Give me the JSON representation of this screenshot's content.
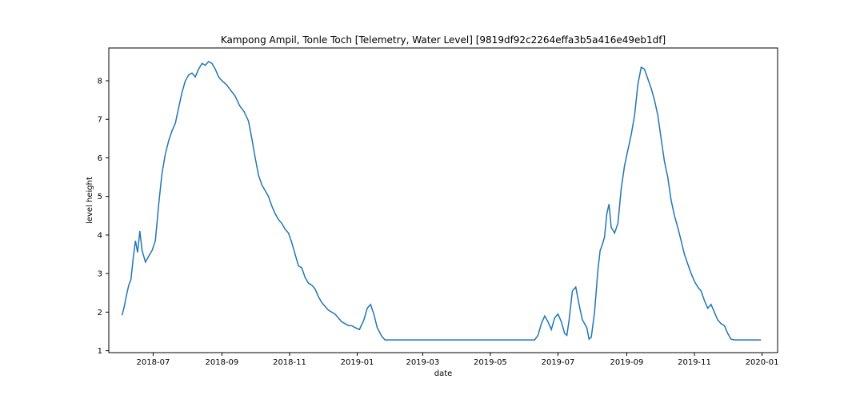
{
  "chart_data": {
    "type": "line",
    "title": "Kampong Ampil, Tonle Toch [Telemetry, Water Level] [9819df92c2264effa3b5a416e49eb1df]",
    "xlabel": "date",
    "ylabel": "level height",
    "x_tick_labels": [
      "2018-07",
      "2018-09",
      "2018-11",
      "2019-01",
      "2019-03",
      "2019-05",
      "2019-07",
      "2019-09",
      "2019-11",
      "2020-01"
    ],
    "y_tick_labels": [
      "1",
      "2",
      "3",
      "4",
      "5",
      "6",
      "7",
      "8"
    ],
    "x_ticks": [
      "2018-07-01",
      "2018-09-01",
      "2018-11-01",
      "2019-01-01",
      "2019-03-01",
      "2019-05-01",
      "2019-07-01",
      "2019-09-01",
      "2019-11-01",
      "2020-01-01"
    ],
    "y_ticks": [
      1,
      2,
      3,
      4,
      5,
      6,
      7,
      8
    ],
    "xlim": [
      "2018-05-22",
      "2020-01-15"
    ],
    "ylim": [
      0.95,
      8.85
    ],
    "grid": false,
    "series": [
      {
        "color": "#1f77b4",
        "points": [
          [
            "2018-06-03",
            1.92
          ],
          [
            "2018-06-05",
            2.15
          ],
          [
            "2018-06-07",
            2.45
          ],
          [
            "2018-06-09",
            2.7
          ],
          [
            "2018-06-11",
            2.85
          ],
          [
            "2018-06-13",
            3.4
          ],
          [
            "2018-06-15",
            3.85
          ],
          [
            "2018-06-17",
            3.55
          ],
          [
            "2018-06-19",
            4.1
          ],
          [
            "2018-06-21",
            3.6
          ],
          [
            "2018-06-24",
            3.3
          ],
          [
            "2018-06-27",
            3.45
          ],
          [
            "2018-06-30",
            3.6
          ],
          [
            "2018-07-03",
            3.85
          ],
          [
            "2018-07-06",
            4.8
          ],
          [
            "2018-07-09",
            5.6
          ],
          [
            "2018-07-12",
            6.1
          ],
          [
            "2018-07-15",
            6.45
          ],
          [
            "2018-07-18",
            6.7
          ],
          [
            "2018-07-21",
            6.9
          ],
          [
            "2018-07-24",
            7.3
          ],
          [
            "2018-07-27",
            7.7
          ],
          [
            "2018-07-30",
            8.0
          ],
          [
            "2018-08-02",
            8.15
          ],
          [
            "2018-08-05",
            8.2
          ],
          [
            "2018-08-08",
            8.1
          ],
          [
            "2018-08-11",
            8.3
          ],
          [
            "2018-08-14",
            8.45
          ],
          [
            "2018-08-17",
            8.4
          ],
          [
            "2018-08-20",
            8.5
          ],
          [
            "2018-08-23",
            8.45
          ],
          [
            "2018-08-26",
            8.3
          ],
          [
            "2018-08-29",
            8.1
          ],
          [
            "2018-09-01",
            8.0
          ],
          [
            "2018-09-05",
            7.9
          ],
          [
            "2018-09-09",
            7.75
          ],
          [
            "2018-09-13",
            7.6
          ],
          [
            "2018-09-17",
            7.35
          ],
          [
            "2018-09-21",
            7.2
          ],
          [
            "2018-09-25",
            6.95
          ],
          [
            "2018-09-28",
            6.5
          ],
          [
            "2018-10-01",
            6.0
          ],
          [
            "2018-10-04",
            5.55
          ],
          [
            "2018-10-07",
            5.3
          ],
          [
            "2018-10-10",
            5.15
          ],
          [
            "2018-10-13",
            5.0
          ],
          [
            "2018-10-16",
            4.75
          ],
          [
            "2018-10-19",
            4.55
          ],
          [
            "2018-10-22",
            4.4
          ],
          [
            "2018-10-25",
            4.3
          ],
          [
            "2018-10-28",
            4.15
          ],
          [
            "2018-10-31",
            4.05
          ],
          [
            "2018-11-03",
            3.8
          ],
          [
            "2018-11-06",
            3.5
          ],
          [
            "2018-11-09",
            3.2
          ],
          [
            "2018-11-12",
            3.15
          ],
          [
            "2018-11-15",
            2.9
          ],
          [
            "2018-11-18",
            2.75
          ],
          [
            "2018-11-21",
            2.7
          ],
          [
            "2018-11-24",
            2.6
          ],
          [
            "2018-11-27",
            2.4
          ],
          [
            "2018-11-30",
            2.25
          ],
          [
            "2018-12-03",
            2.15
          ],
          [
            "2018-12-06",
            2.05
          ],
          [
            "2018-12-09",
            2.0
          ],
          [
            "2018-12-12",
            1.95
          ],
          [
            "2018-12-15",
            1.85
          ],
          [
            "2018-12-18",
            1.75
          ],
          [
            "2018-12-21",
            1.7
          ],
          [
            "2018-12-24",
            1.65
          ],
          [
            "2018-12-27",
            1.65
          ],
          [
            "2018-12-30",
            1.6
          ],
          [
            "2019-01-03",
            1.55
          ],
          [
            "2019-01-07",
            1.8
          ],
          [
            "2019-01-10",
            2.1
          ],
          [
            "2019-01-13",
            2.2
          ],
          [
            "2019-01-16",
            1.95
          ],
          [
            "2019-01-19",
            1.6
          ],
          [
            "2019-01-23",
            1.38
          ],
          [
            "2019-01-26",
            1.28
          ],
          [
            "2019-03-01",
            1.28
          ],
          [
            "2019-05-01",
            1.28
          ],
          [
            "2019-06-10",
            1.28
          ],
          [
            "2019-06-13",
            1.4
          ],
          [
            "2019-06-16",
            1.7
          ],
          [
            "2019-06-19",
            1.9
          ],
          [
            "2019-06-22",
            1.75
          ],
          [
            "2019-06-25",
            1.55
          ],
          [
            "2019-06-28",
            1.85
          ],
          [
            "2019-07-01",
            1.95
          ],
          [
            "2019-07-04",
            1.75
          ],
          [
            "2019-07-07",
            1.45
          ],
          [
            "2019-07-09",
            1.4
          ],
          [
            "2019-07-11",
            1.8
          ],
          [
            "2019-07-14",
            2.55
          ],
          [
            "2019-07-17",
            2.65
          ],
          [
            "2019-07-20",
            2.2
          ],
          [
            "2019-07-23",
            1.8
          ],
          [
            "2019-07-27",
            1.6
          ],
          [
            "2019-07-29",
            1.3
          ],
          [
            "2019-07-31",
            1.35
          ],
          [
            "2019-08-03",
            2.0
          ],
          [
            "2019-08-06",
            3.1
          ],
          [
            "2019-08-08",
            3.6
          ],
          [
            "2019-08-10",
            3.75
          ],
          [
            "2019-08-12",
            3.95
          ],
          [
            "2019-08-14",
            4.55
          ],
          [
            "2019-08-16",
            4.8
          ],
          [
            "2019-08-18",
            4.2
          ],
          [
            "2019-08-21",
            4.05
          ],
          [
            "2019-08-24",
            4.3
          ],
          [
            "2019-08-27",
            5.2
          ],
          [
            "2019-08-30",
            5.8
          ],
          [
            "2019-09-02",
            6.2
          ],
          [
            "2019-09-05",
            6.6
          ],
          [
            "2019-09-08",
            7.1
          ],
          [
            "2019-09-11",
            7.9
          ],
          [
            "2019-09-14",
            8.35
          ],
          [
            "2019-09-17",
            8.3
          ],
          [
            "2019-09-20",
            8.05
          ],
          [
            "2019-09-23",
            7.8
          ],
          [
            "2019-09-26",
            7.5
          ],
          [
            "2019-09-29",
            7.1
          ],
          [
            "2019-10-02",
            6.5
          ],
          [
            "2019-10-05",
            5.9
          ],
          [
            "2019-10-08",
            5.5
          ],
          [
            "2019-10-11",
            4.9
          ],
          [
            "2019-10-14",
            4.5
          ],
          [
            "2019-10-17",
            4.2
          ],
          [
            "2019-10-20",
            3.85
          ],
          [
            "2019-10-23",
            3.5
          ],
          [
            "2019-10-26",
            3.25
          ],
          [
            "2019-10-29",
            3.0
          ],
          [
            "2019-11-01",
            2.8
          ],
          [
            "2019-11-04",
            2.65
          ],
          [
            "2019-11-07",
            2.55
          ],
          [
            "2019-11-10",
            2.3
          ],
          [
            "2019-11-13",
            2.1
          ],
          [
            "2019-11-16",
            2.2
          ],
          [
            "2019-11-19",
            2.0
          ],
          [
            "2019-11-22",
            1.8
          ],
          [
            "2019-11-25",
            1.7
          ],
          [
            "2019-11-28",
            1.65
          ],
          [
            "2019-12-01",
            1.45
          ],
          [
            "2019-12-04",
            1.3
          ],
          [
            "2019-12-07",
            1.28
          ],
          [
            "2019-12-31",
            1.28
          ]
        ]
      }
    ]
  }
}
